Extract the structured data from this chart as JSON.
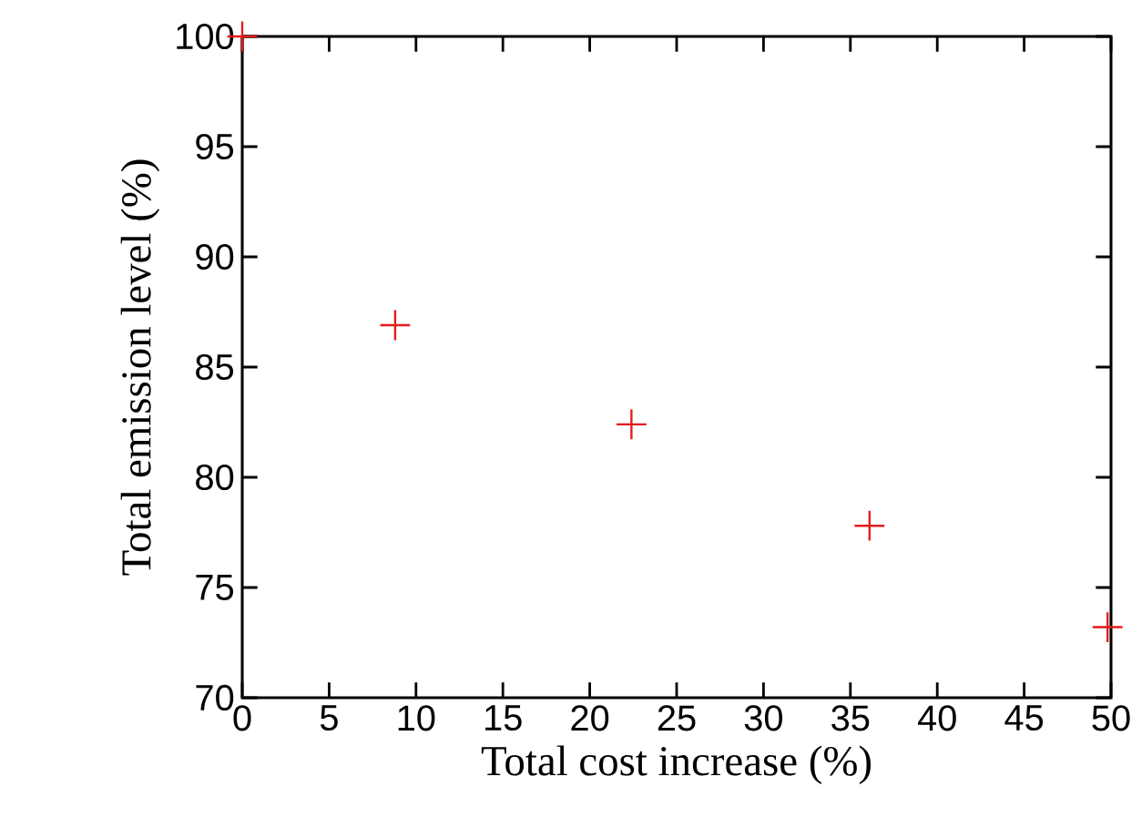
{
  "chart_data": {
    "type": "scatter",
    "xlabel": "Total cost increase (%)",
    "ylabel": "Total emission level (%)",
    "x": [
      0,
      8.8,
      22.4,
      36.1,
      49.8
    ],
    "series": [
      {
        "color": "#e41a1c",
        "values": [
          100,
          86.9,
          82.4,
          77.8,
          73.2
        ]
      }
    ],
    "marker": "cross",
    "xlim": [
      0,
      50
    ],
    "xticks": [
      0,
      5,
      10,
      15,
      20,
      25,
      30,
      35,
      40,
      45,
      50
    ],
    "ylim": [
      70,
      100
    ],
    "yticks": [
      70,
      75,
      80,
      85,
      90,
      95,
      100
    ],
    "grid": false
  }
}
